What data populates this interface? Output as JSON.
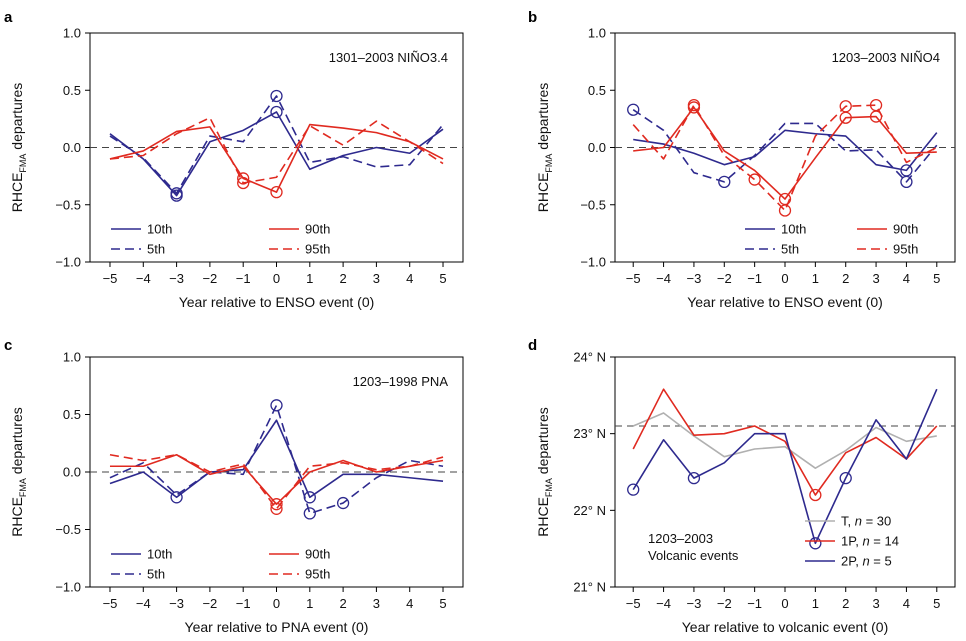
{
  "chart_data": [
    {
      "panel": "a",
      "type": "line",
      "annotation": [
        "1301–2003 NIÑO3.4"
      ],
      "xlabel": "Year relative to ENSO event (0)",
      "ylabel": "RHCE",
      "ylabel_sub": "FMA",
      "ylabel_rest": " departures",
      "x": [
        -5,
        -4,
        -3,
        -2,
        -1,
        0,
        1,
        2,
        3,
        4,
        5
      ],
      "xtick_labels": [
        "−5",
        "−4",
        "−3",
        "−2",
        "−1",
        "0",
        "1",
        "2",
        "3",
        "4",
        "5"
      ],
      "xlim": [
        -5.6,
        5.6
      ],
      "ylim": [
        -1.0,
        1.0
      ],
      "yticks": [
        -1.0,
        -0.5,
        0.0,
        0.5,
        1.0
      ],
      "ytick_labels": [
        "−1.0",
        "−0.5",
        "0.0",
        "0.5",
        "1.0"
      ],
      "ref_line": 0.0,
      "series": [
        {
          "name": "10th",
          "color": "#2e2a8e",
          "dash": "solid",
          "values": [
            0.12,
            -0.1,
            -0.42,
            0.05,
            0.15,
            0.31,
            -0.19,
            -0.07,
            0.0,
            -0.05,
            0.16
          ],
          "circles": [
            2,
            5
          ]
        },
        {
          "name": "5th",
          "color": "#2e2a8e",
          "dash": "dashed",
          "values": [
            0.1,
            -0.09,
            -0.4,
            0.1,
            0.05,
            0.45,
            -0.13,
            -0.08,
            -0.17,
            -0.15,
            0.2
          ],
          "circles": [
            2,
            5
          ]
        },
        {
          "name": "90th",
          "color": "#e02a20",
          "dash": "solid",
          "values": [
            -0.1,
            -0.03,
            0.14,
            0.18,
            -0.27,
            -0.39,
            0.2,
            0.17,
            0.13,
            0.05,
            -0.1
          ],
          "circles": [
            4,
            5
          ]
        },
        {
          "name": "95th",
          "color": "#e02a20",
          "dash": "dashed",
          "values": [
            -0.1,
            -0.07,
            0.12,
            0.26,
            -0.31,
            -0.26,
            0.19,
            0.02,
            0.23,
            0.05,
            -0.14
          ],
          "circles": [
            4
          ]
        }
      ],
      "legend_position": "bottom-left"
    },
    {
      "panel": "b",
      "type": "line",
      "annotation": [
        "1203–2003 NIÑO4"
      ],
      "xlabel": "Year relative to ENSO event (0)",
      "ylabel": "RHCE",
      "ylabel_sub": "FMA",
      "ylabel_rest": " departures",
      "x": [
        -5,
        -4,
        -3,
        -2,
        -1,
        0,
        1,
        2,
        3,
        4,
        5
      ],
      "xtick_labels": [
        "−5",
        "−4",
        "−3",
        "−2",
        "−1",
        "0",
        "1",
        "2",
        "3",
        "4",
        "5"
      ],
      "xlim": [
        -5.6,
        5.6
      ],
      "ylim": [
        -1.0,
        1.0
      ],
      "yticks": [
        -1.0,
        -0.5,
        0.0,
        0.5,
        1.0
      ],
      "ytick_labels": [
        "−1.0",
        "−0.5",
        "0.0",
        "0.5",
        "1.0"
      ],
      "ref_line": 0.0,
      "series": [
        {
          "name": "10th",
          "color": "#2e2a8e",
          "dash": "solid",
          "values": [
            0.07,
            0.03,
            -0.05,
            -0.15,
            -0.08,
            0.15,
            0.12,
            0.1,
            -0.15,
            -0.2,
            0.13
          ],
          "circles": [
            9
          ]
        },
        {
          "name": "5th",
          "color": "#2e2a8e",
          "dash": "dashed",
          "values": [
            0.33,
            0.15,
            -0.22,
            -0.3,
            -0.07,
            0.21,
            0.21,
            -0.03,
            -0.02,
            -0.3,
            0.02
          ],
          "circles": [
            0,
            3,
            9
          ]
        },
        {
          "name": "90th",
          "color": "#e02a20",
          "dash": "solid",
          "values": [
            -0.03,
            0.0,
            0.35,
            -0.03,
            -0.2,
            -0.45,
            -0.09,
            0.26,
            0.27,
            -0.05,
            -0.04
          ],
          "circles": [
            2,
            5,
            7,
            8
          ]
        },
        {
          "name": "95th",
          "color": "#e02a20",
          "dash": "dashed",
          "values": [
            0.2,
            -0.1,
            0.37,
            -0.07,
            -0.28,
            -0.55,
            0.1,
            0.36,
            0.37,
            -0.13,
            0.0
          ],
          "circles": [
            2,
            4,
            5,
            7,
            8
          ]
        }
      ],
      "legend_position": "bottom-right"
    },
    {
      "panel": "c",
      "type": "line",
      "annotation": [
        "1203–1998 PNA"
      ],
      "xlabel": "Year relative to PNA event (0)",
      "ylabel": "RHCE",
      "ylabel_sub": "FMA",
      "ylabel_rest": " departures",
      "x": [
        -5,
        -4,
        -3,
        -2,
        -1,
        0,
        1,
        2,
        3,
        4,
        5
      ],
      "xtick_labels": [
        "−5",
        "−4",
        "−3",
        "−2",
        "−1",
        "0",
        "1",
        "2",
        "3",
        "4",
        "5"
      ],
      "xlim": [
        -5.6,
        5.6
      ],
      "ylim": [
        -1.0,
        1.0
      ],
      "yticks": [
        -1.0,
        -0.5,
        0.0,
        0.5,
        1.0
      ],
      "ytick_labels": [
        "−1.0",
        "−0.5",
        "0.0",
        "0.5",
        "1.0"
      ],
      "ref_line": 0.0,
      "series": [
        {
          "name": "10th",
          "color": "#2e2a8e",
          "dash": "solid",
          "values": [
            -0.1,
            0.0,
            -0.22,
            0.0,
            0.02,
            0.45,
            -0.22,
            -0.02,
            -0.02,
            -0.05,
            -0.08
          ],
          "circles": [
            2,
            6
          ]
        },
        {
          "name": "5th",
          "color": "#2e2a8e",
          "dash": "dashed",
          "values": [
            -0.05,
            0.08,
            -0.2,
            0.0,
            -0.02,
            0.58,
            -0.36,
            -0.27,
            -0.05,
            0.1,
            0.05
          ],
          "circles": [
            5,
            6,
            7
          ]
        },
        {
          "name": "90th",
          "color": "#e02a20",
          "dash": "solid",
          "values": [
            0.05,
            0.05,
            0.15,
            -0.02,
            0.05,
            -0.28,
            0.0,
            0.1,
            0.0,
            0.05,
            0.1
          ],
          "circles": [
            5
          ]
        },
        {
          "name": "95th",
          "color": "#e02a20",
          "dash": "dashed",
          "values": [
            0.15,
            0.1,
            0.15,
            0.0,
            0.07,
            -0.32,
            0.05,
            0.08,
            0.02,
            0.05,
            0.13
          ],
          "circles": [
            5
          ]
        }
      ],
      "legend_position": "bottom-left"
    },
    {
      "panel": "d",
      "type": "line",
      "annotation": [
        "1203–2003",
        "Volcanic events"
      ],
      "xlabel": "Year relative to volcanic event (0)",
      "ylabel": "RHCE",
      "ylabel_sub": "FMA",
      "ylabel_rest": " departures",
      "x": [
        -5,
        -4,
        -3,
        -2,
        -1,
        0,
        1,
        2,
        3,
        4,
        5
      ],
      "xtick_labels": [
        "−5",
        "−4",
        "−3",
        "−2",
        "−1",
        "0",
        "1",
        "2",
        "3",
        "4",
        "5"
      ],
      "xlim": [
        -5.6,
        5.6
      ],
      "ylim": [
        21.0,
        24.0
      ],
      "yticks": [
        21,
        22,
        23,
        24
      ],
      "ytick_labels": [
        "21° N",
        "22° N",
        "23° N",
        "24° N"
      ],
      "ref_line": 23.1,
      "series": [
        {
          "name": "T, n = 30",
          "label_parts": [
            "T, ",
            "n",
            " = 30"
          ],
          "color": "#b0b0b0",
          "dash": "solid",
          "values": [
            23.1,
            23.27,
            22.97,
            22.7,
            22.8,
            22.83,
            22.55,
            22.78,
            23.08,
            22.9,
            22.97
          ],
          "circles": []
        },
        {
          "name": "1P, n = 14",
          "label_parts": [
            "1P, ",
            "n",
            " = 14"
          ],
          "color": "#e02a20",
          "dash": "solid",
          "values": [
            22.8,
            23.58,
            22.98,
            23.0,
            23.1,
            22.9,
            22.2,
            22.75,
            22.95,
            22.67,
            23.1
          ],
          "circles": [
            6
          ]
        },
        {
          "name": "2P, n = 5",
          "label_parts": [
            "2P, ",
            "n",
            " = 5"
          ],
          "color": "#2e2a8e",
          "dash": "solid",
          "values": [
            22.27,
            22.92,
            22.42,
            22.62,
            23.0,
            23.0,
            21.57,
            22.42,
            23.18,
            22.67,
            23.58
          ],
          "circles": [
            0,
            2,
            6,
            7
          ]
        }
      ],
      "legend_position": "bottom-right"
    }
  ]
}
